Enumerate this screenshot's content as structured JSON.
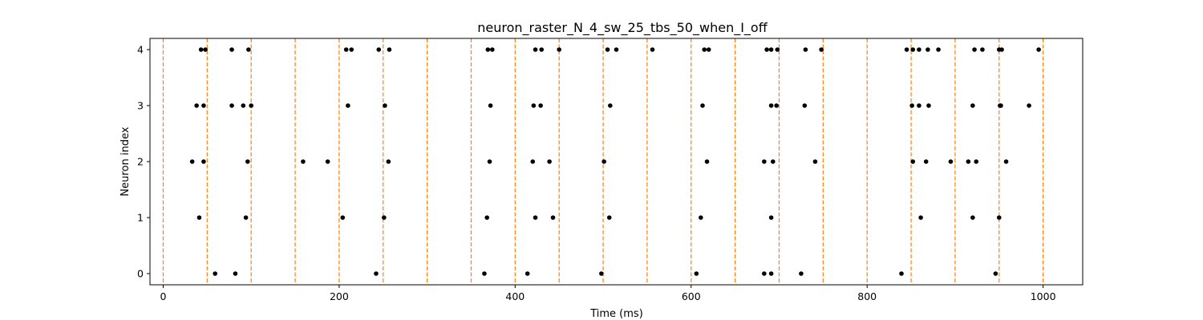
{
  "chart_data": {
    "type": "scatter",
    "title": "neuron_raster_N_4_sw_25_tbs_50_when_I_off",
    "xlabel": "Time (ms)",
    "ylabel": "Neuron index",
    "xlim": [
      -15,
      1045
    ],
    "ylim": [
      -0.2,
      4.2
    ],
    "xticks": [
      0,
      200,
      400,
      600,
      800,
      1000
    ],
    "yticks": [
      0,
      1,
      2,
      3,
      4
    ],
    "grid": false,
    "marker_color": "#000000",
    "vline_color": "#ff7f0e",
    "vlines": [
      0,
      50,
      100,
      150,
      200,
      250,
      300,
      350,
      400,
      450,
      500,
      550,
      600,
      650,
      700,
      750,
      800,
      850,
      900,
      950,
      1000
    ],
    "series": [
      {
        "neuron": 0,
        "spikes": [
          59,
          82,
          242,
          365,
          414,
          498,
          606,
          683,
          691,
          725,
          839,
          946
        ]
      },
      {
        "neuron": 1,
        "spikes": [
          41,
          94,
          204,
          251,
          368,
          423,
          443,
          507,
          611,
          691,
          861,
          920,
          950
        ]
      },
      {
        "neuron": 2,
        "spikes": [
          33,
          46,
          96,
          159,
          187,
          256,
          371,
          420,
          439,
          501,
          618,
          683,
          693,
          741,
          852,
          867,
          895,
          915,
          924,
          958
        ]
      },
      {
        "neuron": 3,
        "spikes": [
          38,
          46,
          78,
          91,
          100,
          210,
          252,
          372,
          421,
          429,
          508,
          613,
          691,
          697,
          729,
          851,
          859,
          870,
          920,
          951,
          952,
          984
        ]
      },
      {
        "neuron": 4,
        "spikes": [
          43,
          48,
          78,
          97,
          208,
          214,
          245,
          257,
          369,
          374,
          423,
          430,
          450,
          505,
          515,
          556,
          615,
          620,
          686,
          691,
          698,
          730,
          748,
          845,
          852,
          859,
          869,
          881,
          922,
          931,
          950,
          953,
          995
        ]
      }
    ]
  }
}
